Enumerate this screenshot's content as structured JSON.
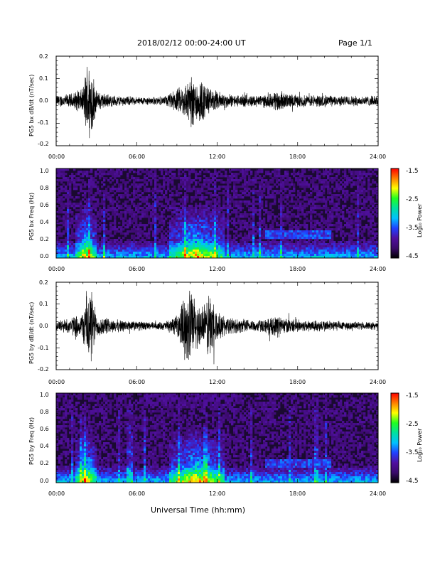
{
  "header": {
    "date_range": "2018/02/12  00:00-24:00 UT",
    "page": "Page 1/1"
  },
  "x_axis_label": "Universal Time (hh:mm)",
  "x_tick_labels": [
    "00:00",
    "06:00",
    "12:00",
    "18:00",
    "24:00"
  ],
  "colorbar": {
    "label": "Log₁₀ Power",
    "tick_labels": [
      "-1.5",
      "-2.5",
      "-3.5",
      "-4.5"
    ],
    "range": [
      -4.5,
      -1.5
    ],
    "colormap": [
      "#000000",
      "#3a0a6a",
      "#5010a0",
      "#2040ff",
      "#00c0ff",
      "#00e0a0",
      "#20ff20",
      "#ffff00",
      "#ff8000",
      "#ff0000"
    ]
  },
  "panels": [
    {
      "ylabel": "PG5 bx dB/dt (nT/sec)",
      "y_tick_labels": [
        "0.2",
        "0.1",
        "0.0",
        "-0.1",
        "-0.2"
      ]
    },
    {
      "ylabel": "PG5 bx Freq (Hz)",
      "y_tick_labels": [
        "1.0",
        "0.8",
        "0.6",
        "0.4",
        "0.2",
        "0.0"
      ]
    },
    {
      "ylabel": "PG5 by dB/dt (nT/sec)",
      "y_tick_labels": [
        "0.2",
        "0.1",
        "0.0",
        "-0.1",
        "-0.2"
      ]
    },
    {
      "ylabel": "PG5 by Freq (Hz)",
      "y_tick_labels": [
        "1.0",
        "0.8",
        "0.6",
        "0.4",
        "0.2",
        "0.0"
      ]
    }
  ],
  "chart_data": [
    {
      "type": "line",
      "ylabel": "PG5 bx dB/dt (nT/sec)",
      "xlim": [
        0,
        24
      ],
      "ylim": [
        -0.2,
        0.2
      ],
      "x_units": "hours UT",
      "envelope": [
        [
          0,
          0.03
        ],
        [
          1,
          0.035
        ],
        [
          2,
          0.06
        ],
        [
          2.3,
          0.2
        ],
        [
          2.6,
          0.2
        ],
        [
          3,
          0.05
        ],
        [
          4,
          0.03
        ],
        [
          5,
          0.025
        ],
        [
          6,
          0.02
        ],
        [
          7,
          0.02
        ],
        [
          8,
          0.02
        ],
        [
          8.5,
          0.04
        ],
        [
          9.5,
          0.08
        ],
        [
          10,
          0.13
        ],
        [
          10.5,
          0.12
        ],
        [
          11,
          0.1
        ],
        [
          11.5,
          0.06
        ],
        [
          12,
          0.05
        ],
        [
          13,
          0.03
        ],
        [
          14,
          0.03
        ],
        [
          15,
          0.03
        ],
        [
          16,
          0.035
        ],
        [
          16.5,
          0.06
        ],
        [
          17,
          0.04
        ],
        [
          18,
          0.03
        ],
        [
          19,
          0.03
        ],
        [
          20,
          0.03
        ],
        [
          21,
          0.025
        ],
        [
          22,
          0.025
        ],
        [
          23,
          0.025
        ],
        [
          24,
          0.025
        ]
      ]
    },
    {
      "type": "heatmap",
      "ylabel": "PG5 bx Freq (Hz)",
      "xlim": [
        0,
        24
      ],
      "ylim": [
        0,
        1.0
      ],
      "value_range": [
        -4.5,
        -1.5
      ],
      "features": [
        {
          "kind": "broadband",
          "x_range": [
            1.5,
            3.0
          ],
          "strength": -3.0
        },
        {
          "kind": "broadband",
          "x_range": [
            8.5,
            12.5
          ],
          "strength": -3.2
        },
        {
          "kind": "band",
          "x_range": [
            15.5,
            20.5
          ],
          "freq_range": [
            0.22,
            0.32
          ],
          "strength": -3.5
        }
      ]
    },
    {
      "type": "line",
      "ylabel": "PG5 by dB/dt (nT/sec)",
      "xlim": [
        0,
        24
      ],
      "ylim": [
        -0.2,
        0.2
      ],
      "x_units": "hours UT",
      "envelope": [
        [
          0,
          0.03
        ],
        [
          1,
          0.04
        ],
        [
          2,
          0.07
        ],
        [
          2.3,
          0.2
        ],
        [
          2.6,
          0.2
        ],
        [
          3,
          0.06
        ],
        [
          4,
          0.035
        ],
        [
          5,
          0.03
        ],
        [
          6,
          0.025
        ],
        [
          7,
          0.02
        ],
        [
          8,
          0.02
        ],
        [
          9,
          0.05
        ],
        [
          9.5,
          0.15
        ],
        [
          10,
          0.2
        ],
        [
          10.5,
          0.12
        ],
        [
          11,
          0.1
        ],
        [
          11.5,
          0.2
        ],
        [
          12,
          0.07
        ],
        [
          13,
          0.04
        ],
        [
          14,
          0.035
        ],
        [
          15,
          0.03
        ],
        [
          16,
          0.04
        ],
        [
          16.5,
          0.06
        ],
        [
          17,
          0.04
        ],
        [
          18,
          0.03
        ],
        [
          19,
          0.03
        ],
        [
          20,
          0.03
        ],
        [
          21,
          0.025
        ],
        [
          22,
          0.02
        ],
        [
          23,
          0.02
        ],
        [
          24,
          0.02
        ]
      ]
    },
    {
      "type": "heatmap",
      "ylabel": "PG5 by Freq (Hz)",
      "xlim": [
        0,
        24
      ],
      "ylim": [
        0,
        1.0
      ],
      "value_range": [
        -4.5,
        -1.5
      ],
      "features": [
        {
          "kind": "broadband",
          "x_range": [
            1.5,
            3.0
          ],
          "strength": -3.0
        },
        {
          "kind": "broadband",
          "x_range": [
            8.5,
            12.5
          ],
          "strength": -3.2
        },
        {
          "kind": "band",
          "x_range": [
            15.5,
            20.5
          ],
          "freq_range": [
            0.17,
            0.25
          ],
          "strength": -3.5
        },
        {
          "kind": "high-freq-noise",
          "x_range": [
            6.7,
            13.5
          ],
          "freq_range": [
            0.85,
            1.0
          ],
          "strength": -4.0
        }
      ]
    }
  ]
}
